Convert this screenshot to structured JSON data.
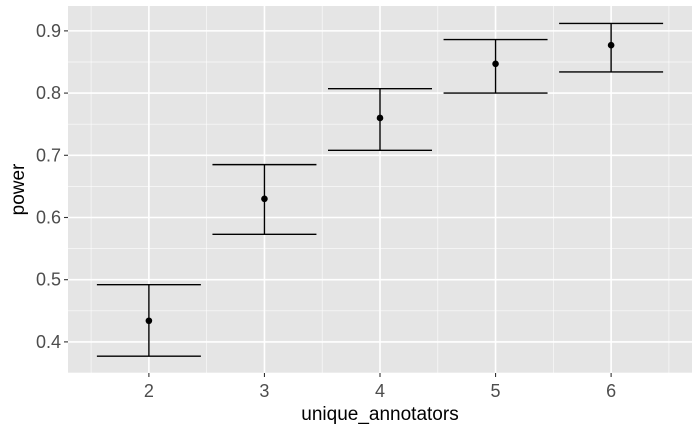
{
  "chart_data": {
    "type": "scatter",
    "xlabel": "unique_annotators",
    "ylabel": "power",
    "x_categories": [
      2,
      3,
      4,
      5,
      6
    ],
    "ylim": [
      0.35,
      0.94
    ],
    "y_ticks": [
      0.4,
      0.5,
      0.6,
      0.7,
      0.8,
      0.9
    ],
    "y_tick_labels": [
      "0.4",
      "0.5",
      "0.6",
      "0.7",
      "0.8",
      "0.9"
    ],
    "x_tick_labels": [
      "2",
      "3",
      "4",
      "5",
      "6"
    ],
    "grid": true,
    "points": [
      {
        "x": 2,
        "y": 0.434,
        "ymin": 0.377,
        "ymax": 0.492
      },
      {
        "x": 3,
        "y": 0.63,
        "ymin": 0.573,
        "ymax": 0.685
      },
      {
        "x": 4,
        "y": 0.76,
        "ymin": 0.708,
        "ymax": 0.807
      },
      {
        "x": 5,
        "y": 0.847,
        "ymin": 0.8,
        "ymax": 0.886
      },
      {
        "x": 6,
        "y": 0.877,
        "ymin": 0.834,
        "ymax": 0.912
      }
    ],
    "colors": {
      "panel_background": "#e5e5e5",
      "grid_major": "#ffffff",
      "point": "#000000",
      "errorbar": "#000000"
    }
  }
}
